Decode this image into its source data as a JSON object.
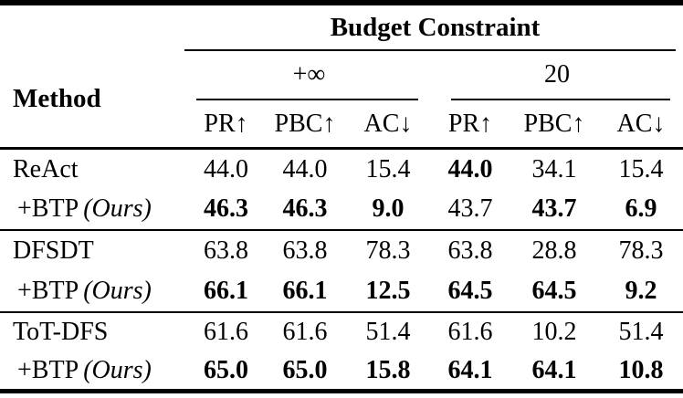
{
  "table": {
    "title": "Budget Constraint",
    "method_header": "Method",
    "groups": [
      {
        "label": "+∞"
      },
      {
        "label": "20"
      }
    ],
    "metrics": [
      "PR↑",
      "PBC↑",
      "AC↓",
      "PR↑",
      "PBC↑",
      "AC↓"
    ],
    "sections": [
      {
        "rows": [
          {
            "method": "ReAct",
            "values": [
              "44.0",
              "44.0",
              "15.4",
              "44.0",
              "34.1",
              "15.4"
            ]
          },
          {
            "method_prefix": "+BTP",
            "method_italic": "(Ours)",
            "values": [
              "46.3",
              "46.3",
              "9.0",
              "43.7",
              "43.7",
              "6.9"
            ]
          }
        ]
      },
      {
        "rows": [
          {
            "method": "DFSDT",
            "values": [
              "63.8",
              "63.8",
              "78.3",
              "63.8",
              "28.8",
              "78.3"
            ]
          },
          {
            "method_prefix": "+BTP",
            "method_italic": "(Ours)",
            "values": [
              "66.1",
              "66.1",
              "12.5",
              "64.5",
              "64.5",
              "9.2"
            ]
          }
        ]
      },
      {
        "rows": [
          {
            "method": "ToT-DFS",
            "values": [
              "61.6",
              "61.6",
              "51.4",
              "61.6",
              "10.2",
              "51.4"
            ]
          },
          {
            "method_prefix": "+BTP",
            "method_italic": "(Ours)",
            "values": [
              "65.0",
              "65.0",
              "15.8",
              "64.1",
              "64.1",
              "10.8"
            ]
          }
        ]
      }
    ],
    "colors": {
      "text": "#000000",
      "background": "#ffffff",
      "rule": "#000000"
    }
  }
}
